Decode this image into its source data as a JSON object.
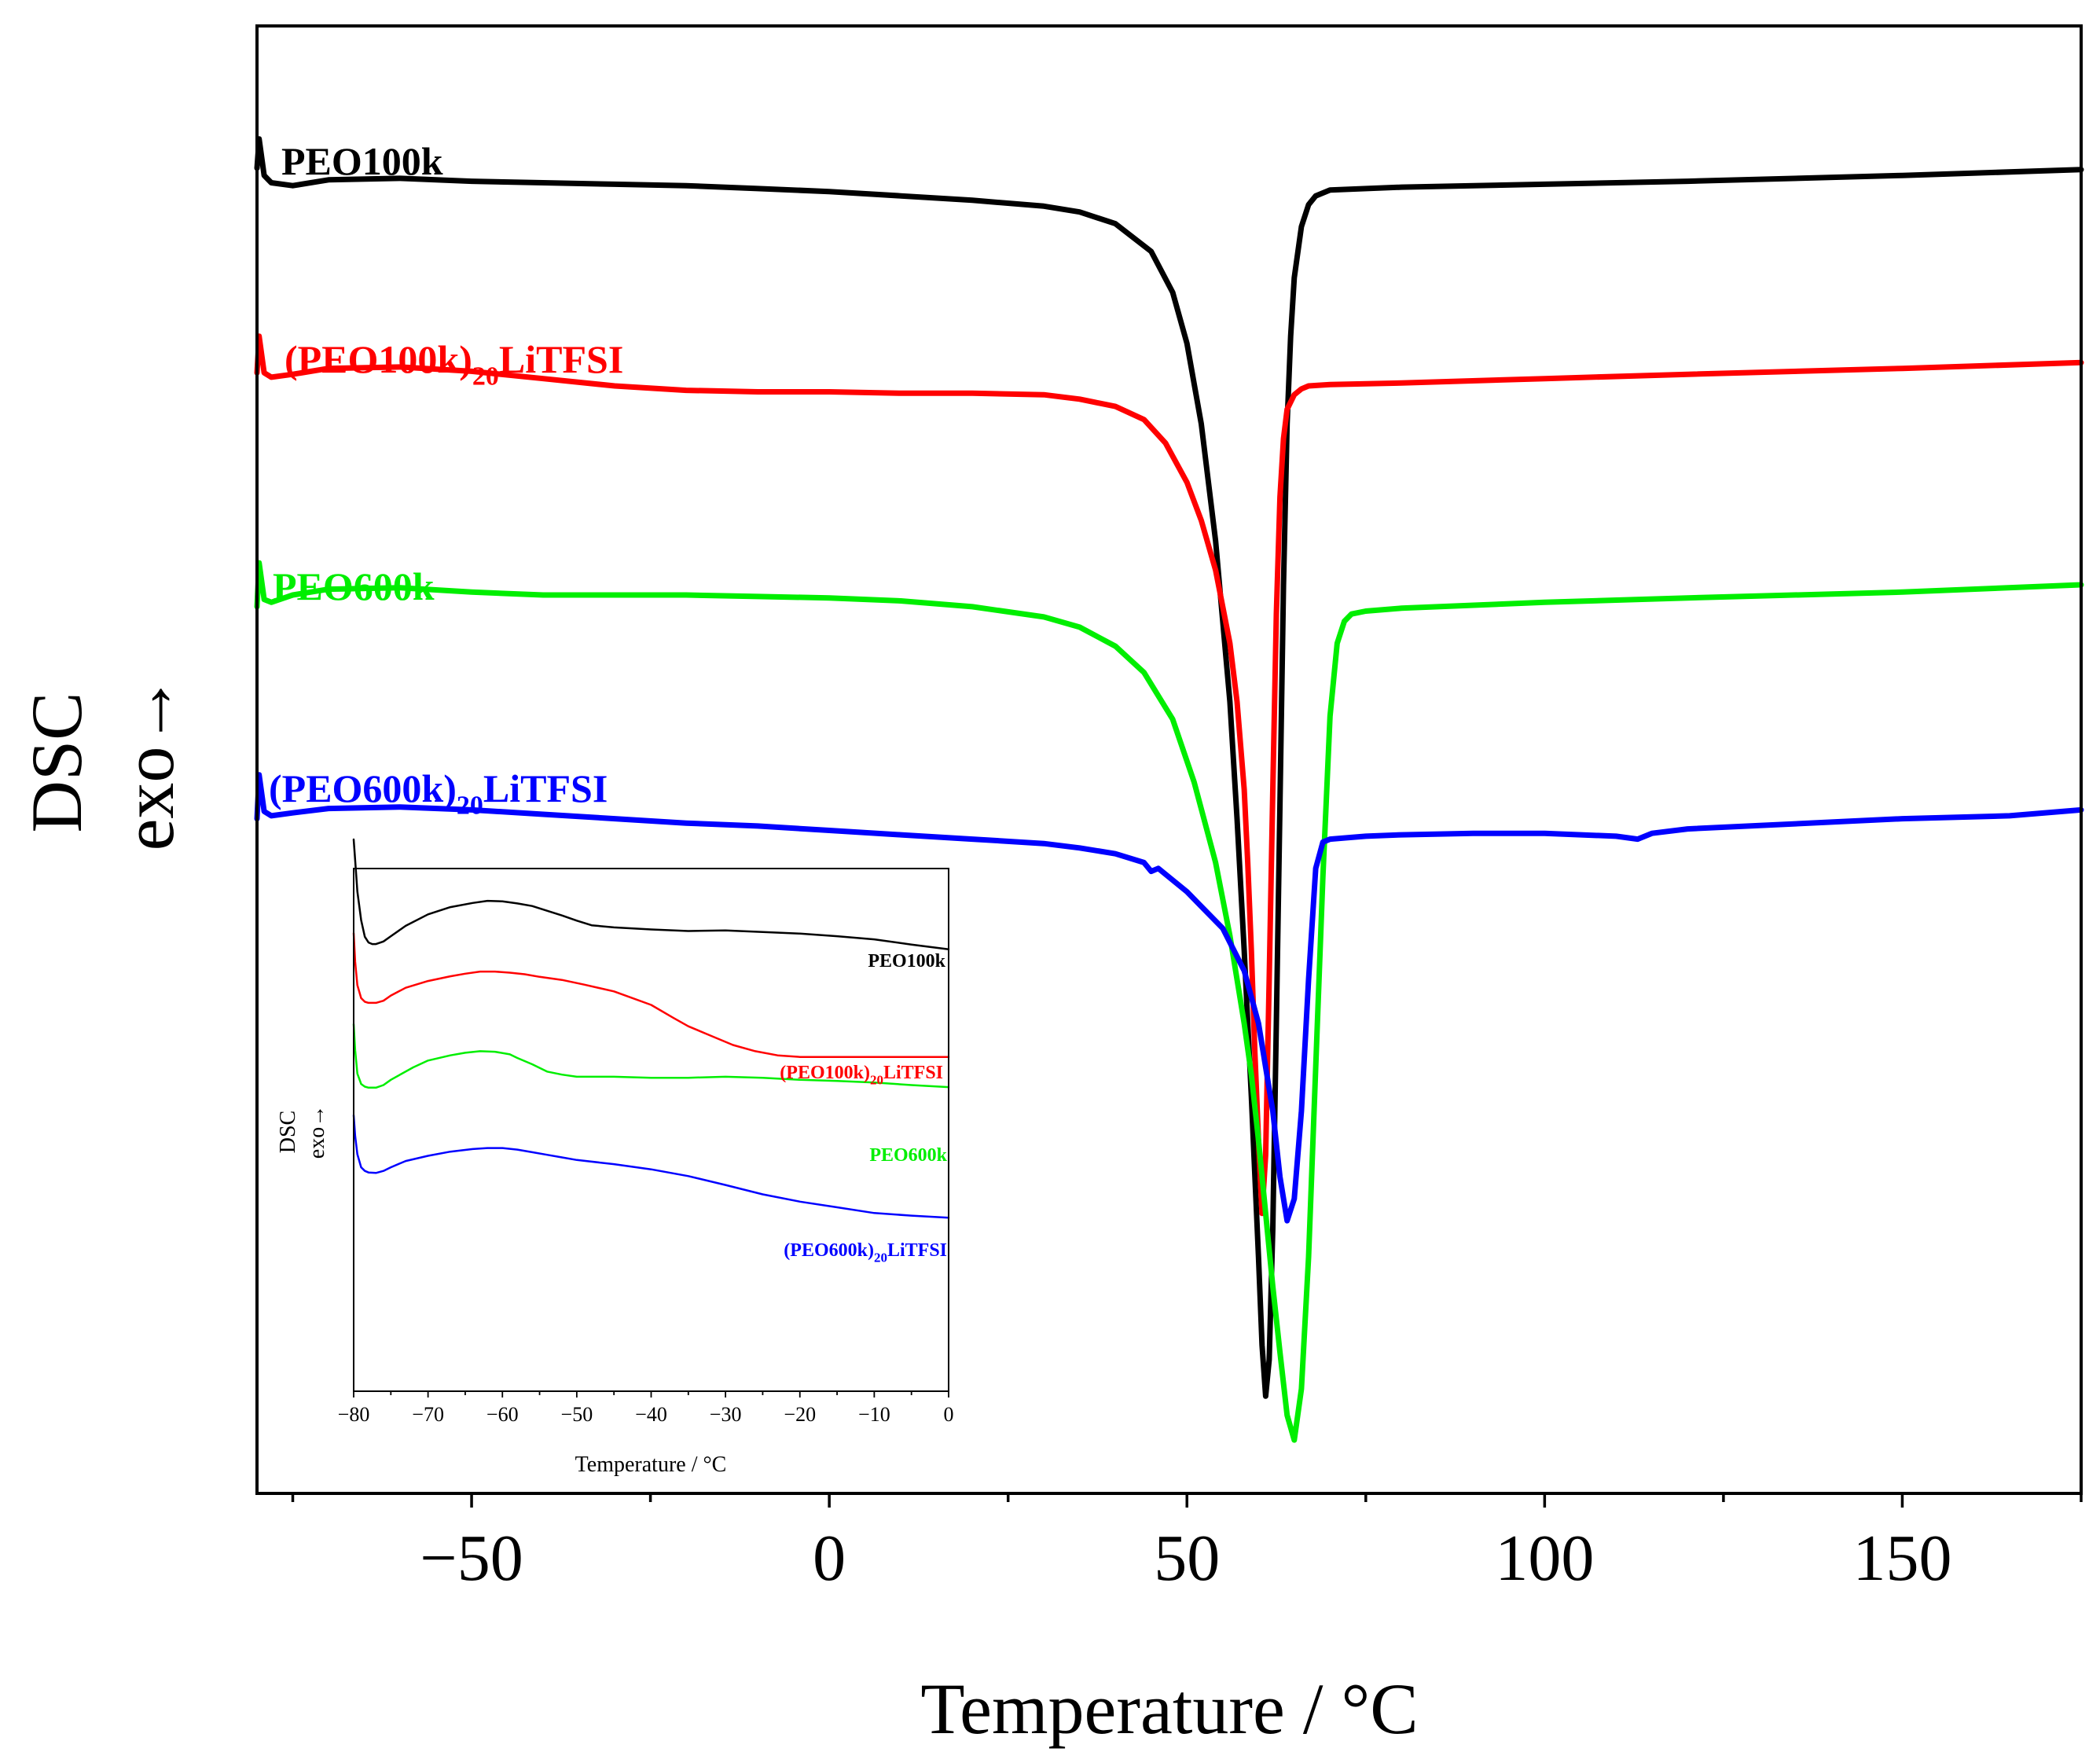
{
  "chart_data": [
    {
      "type": "line",
      "role": "main",
      "title": "",
      "xlabel": "Temperature / °C",
      "ylabel": "DSC",
      "ylabel2": "exo→",
      "xlim": [
        -80,
        175
      ],
      "ylim": [
        0,
        100
      ],
      "y_ticks_shown": false,
      "xticks": [
        -50,
        0,
        50,
        100,
        150
      ],
      "xtick_labels": [
        "−50",
        "0",
        "50",
        "100",
        "150"
      ],
      "series": [
        {
          "name": "PEO100k",
          "label_main": "PEO100k",
          "label_sub": "",
          "label_tail": "",
          "color": "#000000",
          "x": [
            -80,
            -79.7,
            -79,
            -78,
            -75,
            -70,
            -60,
            -50,
            -40,
            -30,
            -20,
            -10,
            0,
            10,
            20,
            30,
            35,
            40,
            45,
            48,
            50,
            52,
            54,
            56,
            57,
            58,
            59,
            60,
            60.5,
            61,
            61.5,
            62,
            62.5,
            63,
            63.5,
            64,
            64.5,
            65,
            66,
            67,
            68,
            70,
            80,
            100,
            120,
            150,
            175
          ],
          "y": [
            88.5,
            90.5,
            88,
            87.5,
            87.3,
            87.7,
            87.8,
            87.6,
            87.5,
            87.4,
            87.3,
            87.1,
            86.9,
            86.6,
            86.3,
            85.9,
            85.5,
            84.7,
            82.8,
            80,
            76.5,
            71,
            63,
            52,
            44,
            35,
            25,
            14,
            8,
            4.5,
            7,
            16,
            30,
            45,
            60,
            71,
            77,
            81,
            84.5,
            86,
            86.6,
            87,
            87.2,
            87.4,
            87.6,
            88,
            88.4
          ]
        },
        {
          "name": "(PEO100k)20LiTFSI",
          "label_main": "(PEO100k)",
          "label_sub": "20",
          "label_tail": "LiTFSI",
          "color": "#ff0000",
          "x": [
            -80,
            -79.7,
            -79,
            -78,
            -75,
            -70,
            -60,
            -50,
            -40,
            -30,
            -20,
            -10,
            0,
            10,
            20,
            30,
            35,
            40,
            44,
            47,
            50,
            52,
            54,
            56,
            57,
            58,
            58.5,
            59,
            59.5,
            60,
            60.5,
            61,
            61.5,
            62,
            62.5,
            63,
            63.5,
            64,
            65,
            66,
            67,
            70,
            80,
            100,
            120,
            150,
            175
          ],
          "y": [
            74.5,
            77,
            74.5,
            74.2,
            74.4,
            74.8,
            74.9,
            74.6,
            74.1,
            73.6,
            73.3,
            73.2,
            73.2,
            73.1,
            73.1,
            73,
            72.7,
            72.2,
            71.3,
            69.7,
            67,
            64.4,
            61,
            56,
            52,
            46,
            41,
            35,
            28,
            22,
            17,
            21,
            33,
            46,
            58,
            66,
            70,
            72,
            73,
            73.4,
            73.6,
            73.7,
            73.8,
            74.1,
            74.4,
            74.8,
            75.2
          ]
        },
        {
          "name": "PEO600k",
          "label_main": "PEO600k",
          "label_sub": "",
          "label_tail": "",
          "color": "#00ee00",
          "x": [
            -80,
            -79.7,
            -79,
            -78,
            -75,
            -70,
            -60,
            -50,
            -40,
            -30,
            -20,
            -10,
            0,
            10,
            20,
            30,
            35,
            40,
            44,
            48,
            51,
            54,
            56,
            58,
            59,
            60,
            61,
            62,
            63,
            64,
            65,
            66,
            67,
            68,
            69,
            70,
            71,
            72,
            73,
            75,
            80,
            100,
            120,
            150,
            175
          ],
          "y": [
            58.5,
            61.5,
            59,
            58.8,
            59.3,
            59.7,
            59.8,
            59.5,
            59.3,
            59.3,
            59.3,
            59.2,
            59.1,
            58.9,
            58.5,
            57.8,
            57.1,
            55.8,
            54,
            50.8,
            46.5,
            41,
            36,
            30,
            26.5,
            22,
            17,
            12,
            7.5,
            3.2,
            1.5,
            5,
            14,
            27,
            40,
            51,
            56,
            57.5,
            58,
            58.2,
            58.4,
            58.8,
            59.1,
            59.5,
            60
          ]
        },
        {
          "name": "(PEO600k)20LiTFSI",
          "label_main": "(PEO600k)",
          "label_sub": "20",
          "label_tail": "LiTFSI",
          "color": "#0000ff",
          "x": [
            -80,
            -79.7,
            -79,
            -78,
            -75,
            -70,
            -60,
            -50,
            -40,
            -30,
            -20,
            -10,
            0,
            10,
            20,
            30,
            35,
            40,
            44,
            45,
            46,
            50,
            55,
            58,
            60,
            62,
            63,
            64,
            65,
            66,
            67,
            68,
            69,
            70,
            75,
            80,
            90,
            100,
            110,
            113,
            115,
            120,
            150,
            165,
            175
          ],
          "y": [
            44,
            47,
            44.5,
            44.2,
            44.4,
            44.7,
            44.8,
            44.6,
            44.3,
            44,
            43.7,
            43.5,
            43.2,
            42.9,
            42.6,
            42.3,
            42,
            41.6,
            41,
            40.4,
            40.6,
            39,
            36.5,
            33.6,
            30,
            24,
            19.5,
            16.5,
            18,
            24,
            33,
            40.6,
            42.4,
            42.6,
            42.8,
            42.9,
            43,
            43,
            42.8,
            42.6,
            43,
            43.3,
            44,
            44.2,
            44.6
          ]
        }
      ]
    },
    {
      "type": "line",
      "role": "inset",
      "title": "",
      "xlabel": "Temperature / °C",
      "ylabel": "DSC",
      "ylabel2": "exo→",
      "xlim": [
        -80,
        0
      ],
      "ylim": [
        0,
        100
      ],
      "y_ticks_shown": false,
      "xticks": [
        -80,
        -70,
        -60,
        -50,
        -40,
        -30,
        -20,
        -10,
        0
      ],
      "xtick_labels": [
        "−80",
        "−70",
        "−60",
        "−50",
        "−40",
        "−30",
        "−20",
        "−10",
        "0"
      ],
      "series": [
        {
          "name": "PEO100k",
          "label_main": "PEO100k",
          "label_sub": "",
          "label_tail": "",
          "color": "#000000",
          "x": [
            -80,
            -79.8,
            -79.5,
            -79,
            -78.5,
            -78,
            -77.5,
            -77,
            -76,
            -75,
            -73,
            -70,
            -67,
            -64,
            -62,
            -60,
            -58,
            -56,
            -54,
            -52,
            -50,
            -48,
            -45,
            -40,
            -35,
            -30,
            -25,
            -20,
            -15,
            -10,
            -5,
            0
          ],
          "y": [
            100,
            96,
            90,
            84.5,
            81.3,
            80.2,
            79.9,
            79.9,
            80.4,
            81.4,
            83.4,
            85.6,
            87,
            87.8,
            88.2,
            88.1,
            87.7,
            87.2,
            86.3,
            85.4,
            84.4,
            83.5,
            83.1,
            82.7,
            82.4,
            82.5,
            82.2,
            81.9,
            81.4,
            80.8,
            79.8,
            78.9
          ]
        },
        {
          "name": "(PEO100k)20LiTFSI",
          "label_main": "(PEO100k)",
          "label_sub": "20",
          "label_tail": "LiTFSI",
          "color": "#ff0000",
          "x": [
            -80,
            -79.8,
            -79.5,
            -79,
            -78.5,
            -78,
            -77,
            -76,
            -75,
            -73,
            -70,
            -67,
            -65,
            -63,
            -61,
            -59,
            -57,
            -55,
            -52,
            -49,
            -45,
            -40,
            -37,
            -35,
            -32,
            -29,
            -26,
            -23,
            -20,
            -15,
            -10,
            -5,
            0
          ],
          "y": [
            82,
            76.5,
            72,
            69.5,
            68.8,
            68.6,
            68.6,
            69,
            70,
            71.5,
            72.8,
            73.7,
            74.2,
            74.6,
            74.6,
            74.4,
            74.1,
            73.6,
            73,
            72.1,
            70.8,
            68.2,
            65.7,
            64.1,
            62.3,
            60.5,
            59.3,
            58.5,
            58.2,
            58.2,
            58.2,
            58.2,
            58.2
          ]
        },
        {
          "name": "PEO600k",
          "label_main": "PEO600k",
          "label_sub": "",
          "label_tail": "",
          "color": "#00ee00",
          "x": [
            -80,
            -79.8,
            -79.5,
            -79,
            -78.5,
            -78,
            -77,
            -76,
            -75,
            -72,
            -70,
            -67,
            -65,
            -63,
            -61,
            -59,
            -58,
            -56,
            -54,
            -52,
            -50,
            -45,
            -40,
            -35,
            -30,
            -25,
            -20,
            -15,
            -10,
            -5,
            0
          ],
          "y": [
            64.5,
            59.5,
            55,
            53,
            52.5,
            52.3,
            52.3,
            52.8,
            53.8,
            56.2,
            57.5,
            58.5,
            59,
            59.3,
            59.2,
            58.7,
            58,
            56.8,
            55.4,
            54.8,
            54.4,
            54.4,
            54.2,
            54.2,
            54.4,
            54.2,
            53.8,
            53.6,
            53.3,
            52.8,
            52.4
          ]
        },
        {
          "name": "(PEO600k)20LiTFSI",
          "label_main": "(PEO600k)",
          "label_sub": "20",
          "label_tail": "LiTFSI",
          "color": "#0000ff",
          "x": [
            -80,
            -79.8,
            -79.5,
            -79,
            -78.5,
            -78,
            -77,
            -76,
            -75,
            -73,
            -70,
            -67,
            -64,
            -62,
            -60,
            -58,
            -56,
            -54,
            -52,
            -50,
            -45,
            -40,
            -35,
            -30,
            -25,
            -20,
            -15,
            -10,
            -5,
            0
          ],
          "y": [
            47,
            43,
            39.5,
            37,
            36.3,
            36,
            35.9,
            36.3,
            37,
            38.2,
            39.2,
            40,
            40.5,
            40.7,
            40.7,
            40.4,
            39.9,
            39.4,
            38.9,
            38.4,
            37.6,
            36.6,
            35.3,
            33.6,
            31.8,
            30.4,
            29.3,
            28.2,
            27.7,
            27.3
          ]
        }
      ]
    }
  ]
}
